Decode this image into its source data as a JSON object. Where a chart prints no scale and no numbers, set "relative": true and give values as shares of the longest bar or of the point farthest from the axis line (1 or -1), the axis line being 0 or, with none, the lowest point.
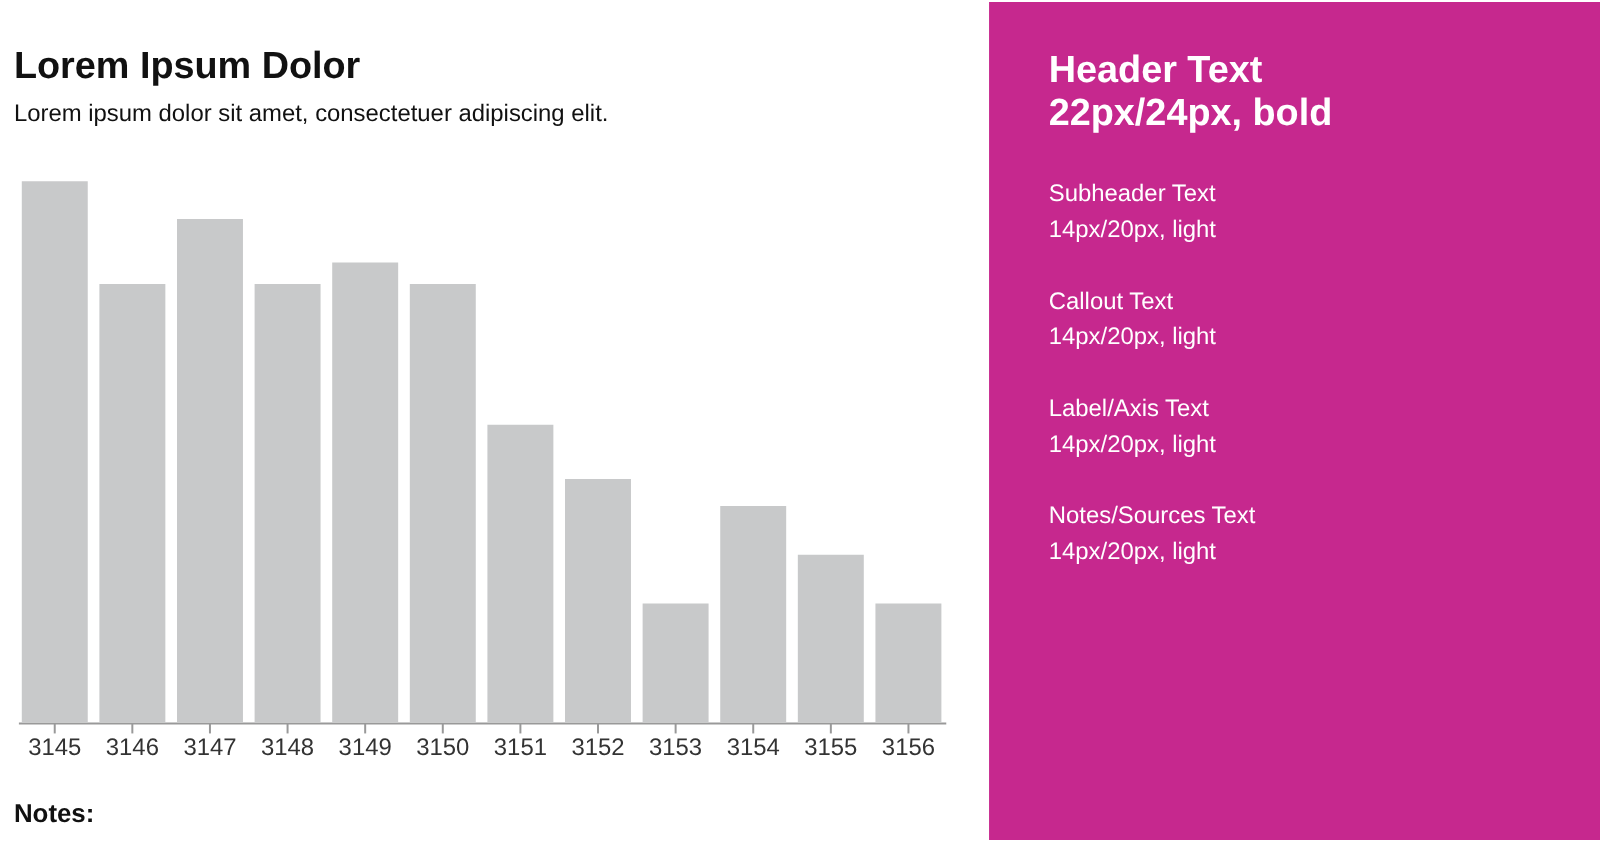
{
  "chart_data": [
    {
      "type": "bar",
      "title": "Lorem Ipsum Dolor",
      "subtitle": "Lorem ipsum dolor sit amet, consectetuer adipiscing elit.",
      "categories": [
        "3145",
        "3146",
        "3147",
        "3148",
        "3149",
        "3150",
        "3151",
        "3152",
        "3153",
        "3154",
        "3155",
        "3156"
      ],
      "values": [
        1,
        0.81,
        0.93,
        0.81,
        0.85,
        0.81,
        0.55,
        0.45,
        0.22,
        0.4,
        0.31,
        0.22
      ],
      "relative": true,
      "color": "#c8c9ca",
      "grid": false,
      "annotations": [
        "Notes:"
      ]
    },
    {
      "type": "other",
      "title": "Header Text",
      "subtitle": "22px/24px, bold",
      "color": "#c6288e",
      "annotations": [
        "Subheader Text",
        "14px/20px, light",
        "Callout Text",
        "14px/20px, light",
        "Label/Axis Text",
        "14px/20px, light",
        "Notes/Sources Text",
        "14px/20px, light"
      ]
    }
  ]
}
